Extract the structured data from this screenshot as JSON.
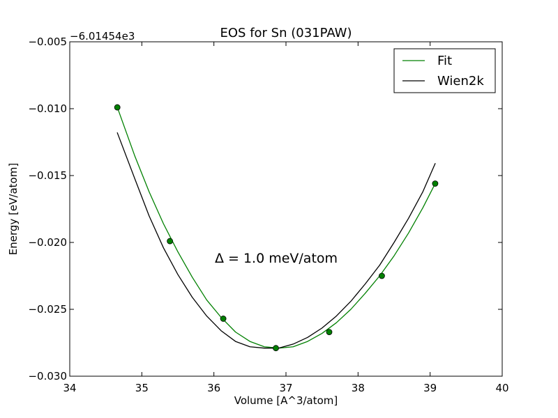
{
  "chart_data": {
    "type": "line",
    "title": "EOS for Sn (031PAW)",
    "xlabel": "Volume [A^3/atom]",
    "ylabel": "Energy [eV/atom]",
    "y_offset_label": "−6.01454e3",
    "xlim": [
      34,
      40
    ],
    "ylim": [
      -0.03,
      -0.005
    ],
    "x_ticks": [
      34,
      35,
      36,
      37,
      38,
      39,
      40
    ],
    "x_tick_labels": [
      "34",
      "35",
      "36",
      "37",
      "38",
      "39",
      "40"
    ],
    "y_ticks": [
      -0.03,
      -0.025,
      -0.02,
      -0.015,
      -0.01,
      -0.005
    ],
    "y_tick_labels": [
      "−0.030",
      "−0.025",
      "−0.020",
      "−0.015",
      "−0.010",
      "−0.005"
    ],
    "grid": false,
    "legend_position": "top-right",
    "annotation": "Δ = 1.0 meV/atom",
    "series": [
      {
        "name": "Fit",
        "kind": "line",
        "color": "#008000",
        "x": [
          34.66,
          34.9,
          35.1,
          35.3,
          35.5,
          35.7,
          35.9,
          36.1,
          36.3,
          36.5,
          36.7,
          36.9,
          37.1,
          37.3,
          37.5,
          37.7,
          37.9,
          38.1,
          38.3,
          38.5,
          38.7,
          38.9,
          39.07
        ],
        "y": [
          -0.0099,
          -0.0135,
          -0.0162,
          -0.0186,
          -0.0207,
          -0.0226,
          -0.0243,
          -0.0256,
          -0.0267,
          -0.0274,
          -0.0278,
          -0.0279,
          -0.0278,
          -0.0274,
          -0.0268,
          -0.026,
          -0.025,
          -0.0238,
          -0.0225,
          -0.021,
          -0.0193,
          -0.0174,
          -0.0156
        ]
      },
      {
        "name": "Wien2k",
        "kind": "line",
        "color": "#000000",
        "x": [
          34.66,
          34.9,
          35.1,
          35.3,
          35.5,
          35.7,
          35.9,
          36.1,
          36.3,
          36.5,
          36.7,
          36.9,
          37.1,
          37.3,
          37.5,
          37.7,
          37.9,
          38.1,
          38.3,
          38.5,
          38.7,
          38.9,
          39.07
        ],
        "y": [
          -0.0118,
          -0.0152,
          -0.018,
          -0.0204,
          -0.0224,
          -0.0241,
          -0.0255,
          -0.0266,
          -0.0274,
          -0.0278,
          -0.0279,
          -0.0279,
          -0.0276,
          -0.0271,
          -0.0264,
          -0.0255,
          -0.0244,
          -0.0231,
          -0.0217,
          -0.02,
          -0.0182,
          -0.0162,
          -0.0141
        ]
      },
      {
        "kind": "points",
        "color": "#008000",
        "x": [
          34.66,
          35.39,
          36.13,
          36.86,
          37.6,
          38.33,
          39.07
        ],
        "y": [
          -0.0099,
          -0.0199,
          -0.0257,
          -0.0279,
          -0.0267,
          -0.0225,
          -0.0156
        ]
      }
    ]
  }
}
